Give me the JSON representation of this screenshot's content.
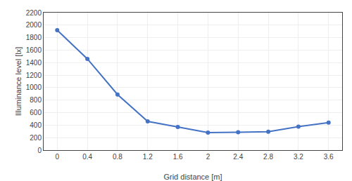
{
  "chart_data": {
    "type": "line",
    "x": [
      0,
      0.4,
      0.8,
      1.2,
      1.6,
      2,
      2.4,
      2.8,
      3.2,
      3.6
    ],
    "values": [
      1920,
      1460,
      890,
      460,
      370,
      280,
      285,
      295,
      375,
      440
    ],
    "color": "#4472C4",
    "marker": "circle",
    "xlabel": "Grid distance [m]",
    "ylabel": "Illuminance level [lx]",
    "xlim": [
      -0.18,
      3.78
    ],
    "ylim": [
      0,
      2200
    ],
    "xticks": [
      0,
      0.4,
      0.8,
      1.2,
      1.6,
      2,
      2.4,
      2.8,
      3.2,
      3.6
    ],
    "yticks": [
      0,
      200,
      400,
      600,
      800,
      1000,
      1200,
      1400,
      1600,
      1800,
      2000,
      2200
    ],
    "grid": true
  }
}
